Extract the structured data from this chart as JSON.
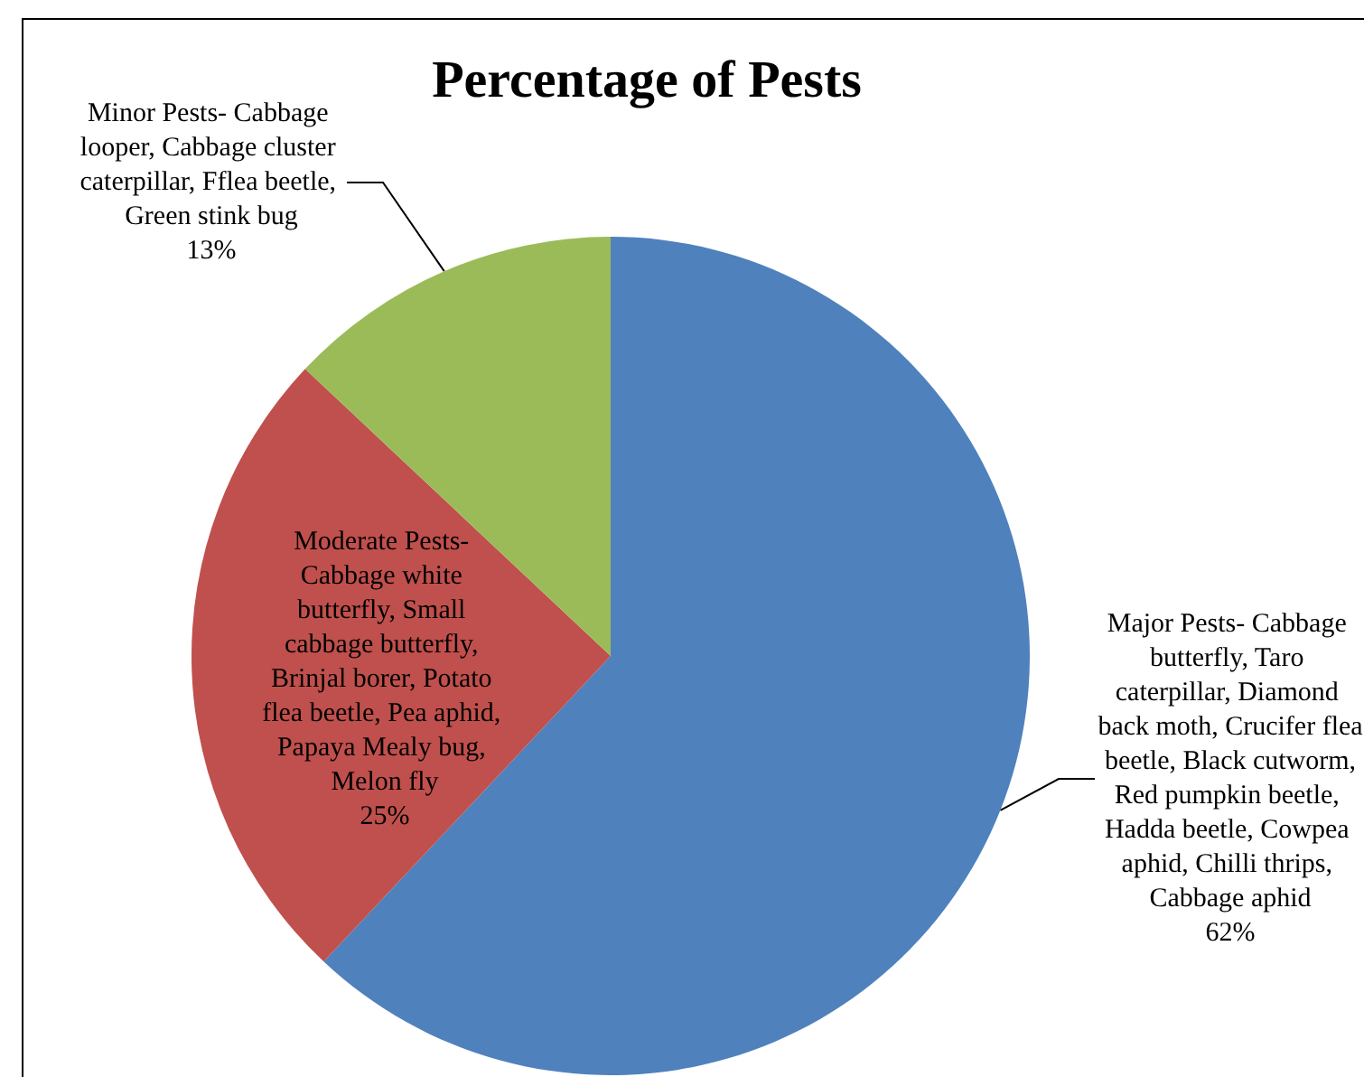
{
  "chart_data": {
    "type": "pie",
    "title": "Percentage of Pests",
    "categories": [
      "Major Pests- Cabbage butterfly, Taro caterpillar, Diamond back moth, Crucifer flea beetle, Black cutworm, Red pumpkin beetle, Hadda beetle, Cowpea aphid, Chilli thrips, Cabbage aphid",
      "Moderate Pests- Cabbage white butterfly, Small cabbage butterfly, Brinjal borer, Potato flea beetle, Pea aphid, Papaya Mealy bug, Melon fly",
      "Minor Pests- Cabbage looper, Cabbage cluster caterpillar, Fflea beetle, Green stink bug"
    ],
    "values": [
      62,
      25,
      13
    ],
    "colors": [
      "#4f81bd",
      "#c0504d",
      "#9bbb59"
    ],
    "value_labels": [
      "62%",
      "25%",
      "13%"
    ],
    "legend": false
  }
}
